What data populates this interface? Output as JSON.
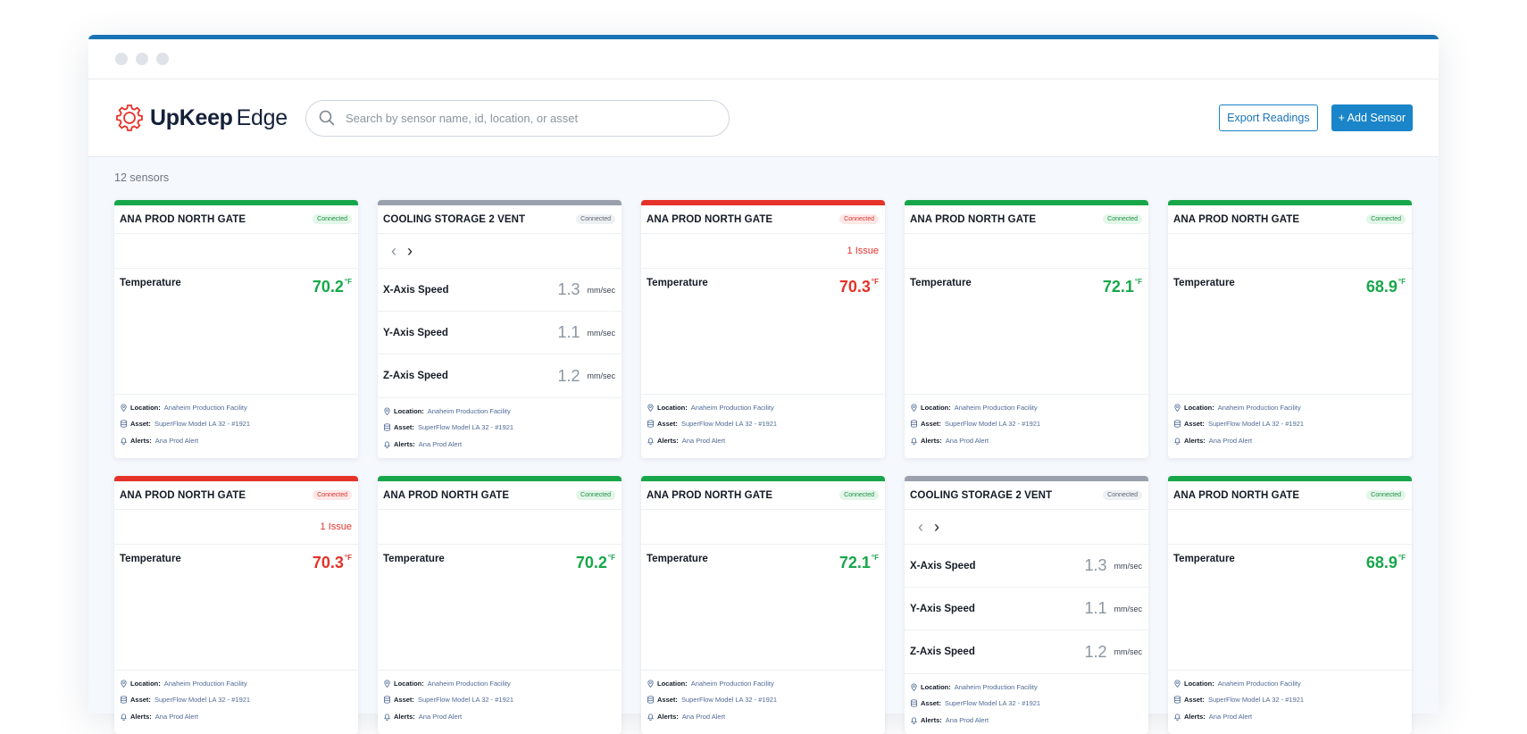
{
  "header": {
    "logo_bold": "UpKeep",
    "logo_light": "Edge",
    "search_placeholder": "Search by sensor name, id, location, or asset",
    "export_label": "Export Readings",
    "add_label": "+ Add Sensor"
  },
  "sensor_count": "12 sensors",
  "colors": {
    "green": "#17a74a",
    "red": "#e5332a",
    "gray": "#9aa1ad",
    "accent": "#1a85c9"
  },
  "cards": [
    {
      "title": "ANA PROD NORTH GATE",
      "status": "Connected",
      "bar": "green",
      "issue": "",
      "metric": "Temperature",
      "value": "70.2",
      "unit": "°F",
      "location_label": "Location:",
      "location": "Anaheim Production Facility",
      "asset_label": "Asset:",
      "asset": "SuperFlow Model LA 32 - #1921",
      "alerts_label": "Alerts:",
      "alerts": "Ana Prod Alert"
    },
    {
      "title": "COOLING STORAGE 2 VENT",
      "status": "Connected",
      "bar": "gray",
      "multi": true,
      "metrics": [
        {
          "name": "X-Axis Speed",
          "value": "1.3",
          "unit": "mm/sec"
        },
        {
          "name": "Y-Axis Speed",
          "value": "1.1",
          "unit": "mm/sec"
        },
        {
          "name": "Z-Axis Speed",
          "value": "1.2",
          "unit": "mm/sec"
        }
      ],
      "location_label": "Location:",
      "location": "Anaheim Production Facility",
      "asset_label": "Asset:",
      "asset": "SuperFlow Model LA 32 - #1921",
      "alerts_label": "Alerts:",
      "alerts": "Ana Prod Alert"
    },
    {
      "title": "ANA PROD NORTH GATE",
      "status": "Connected",
      "bar": "red",
      "issue": "1 Issue",
      "metric": "Temperature",
      "value": "70.3",
      "unit": "°F",
      "location_label": "Location:",
      "location": "Anaheim Production Facility",
      "asset_label": "Asset:",
      "asset": "SuperFlow Model LA 32 - #1921",
      "alerts_label": "Alerts:",
      "alerts": "Ana Prod Alert"
    },
    {
      "title": "ANA PROD NORTH GATE",
      "status": "Connected",
      "bar": "green",
      "issue": "",
      "metric": "Temperature",
      "value": "72.1",
      "unit": "°F",
      "location_label": "Location:",
      "location": "Anaheim Production Facility",
      "asset_label": "Asset:",
      "asset": "SuperFlow Model LA 32 - #1921",
      "alerts_label": "Alerts:",
      "alerts": "Ana Prod Alert"
    },
    {
      "title": "ANA PROD NORTH GATE",
      "status": "Connected",
      "bar": "green",
      "issue": "",
      "metric": "Temperature",
      "value": "68.9",
      "unit": "°F",
      "location_label": "Location:",
      "location": "Anaheim Production Facility",
      "asset_label": "Asset:",
      "asset": "SuperFlow Model LA 32 - #1921",
      "alerts_label": "Alerts:",
      "alerts": "Ana Prod Alert"
    },
    {
      "title": "ANA PROD NORTH GATE",
      "status": "Connected",
      "bar": "red",
      "issue": "1 Issue",
      "metric": "Temperature",
      "value": "70.3",
      "unit": "°F",
      "location_label": "Location:",
      "location": "Anaheim Production Facility",
      "asset_label": "Asset:",
      "asset": "SuperFlow Model LA 32 - #1921",
      "alerts_label": "Alerts:",
      "alerts": "Ana Prod Alert"
    },
    {
      "title": "ANA PROD NORTH GATE",
      "status": "Connected",
      "bar": "green",
      "issue": "",
      "metric": "Temperature",
      "value": "70.2",
      "unit": "°F",
      "location_label": "Location:",
      "location": "Anaheim Production Facility",
      "asset_label": "Asset:",
      "asset": "SuperFlow Model LA 32 - #1921",
      "alerts_label": "Alerts:",
      "alerts": "Ana Prod Alert"
    },
    {
      "title": "ANA PROD NORTH GATE",
      "status": "Connected",
      "bar": "green",
      "issue": "",
      "metric": "Temperature",
      "value": "72.1",
      "unit": "°F",
      "location_label": "Location:",
      "location": "Anaheim Production Facility",
      "asset_label": "Asset:",
      "asset": "SuperFlow Model LA 32 - #1921",
      "alerts_label": "Alerts:",
      "alerts": "Ana Prod Alert"
    },
    {
      "title": "COOLING STORAGE 2 VENT",
      "status": "Connected",
      "bar": "gray",
      "multi": true,
      "metrics": [
        {
          "name": "X-Axis Speed",
          "value": "1.3",
          "unit": "mm/sec"
        },
        {
          "name": "Y-Axis Speed",
          "value": "1.1",
          "unit": "mm/sec"
        },
        {
          "name": "Z-Axis Speed",
          "value": "1.2",
          "unit": "mm/sec"
        }
      ],
      "location_label": "Location:",
      "location": "Anaheim Production Facility",
      "asset_label": "Asset:",
      "asset": "SuperFlow Model LA 32 - #1921",
      "alerts_label": "Alerts:",
      "alerts": "Ana Prod Alert"
    },
    {
      "title": "ANA PROD NORTH GATE",
      "status": "Connected",
      "bar": "green",
      "issue": "",
      "metric": "Temperature",
      "value": "68.9",
      "unit": "°F",
      "location_label": "Location:",
      "location": "Anaheim Production Facility",
      "asset_label": "Asset:",
      "asset": "SuperFlow Model LA 32 - #1921",
      "alerts_label": "Alerts:",
      "alerts": "Ana Prod Alert"
    }
  ]
}
